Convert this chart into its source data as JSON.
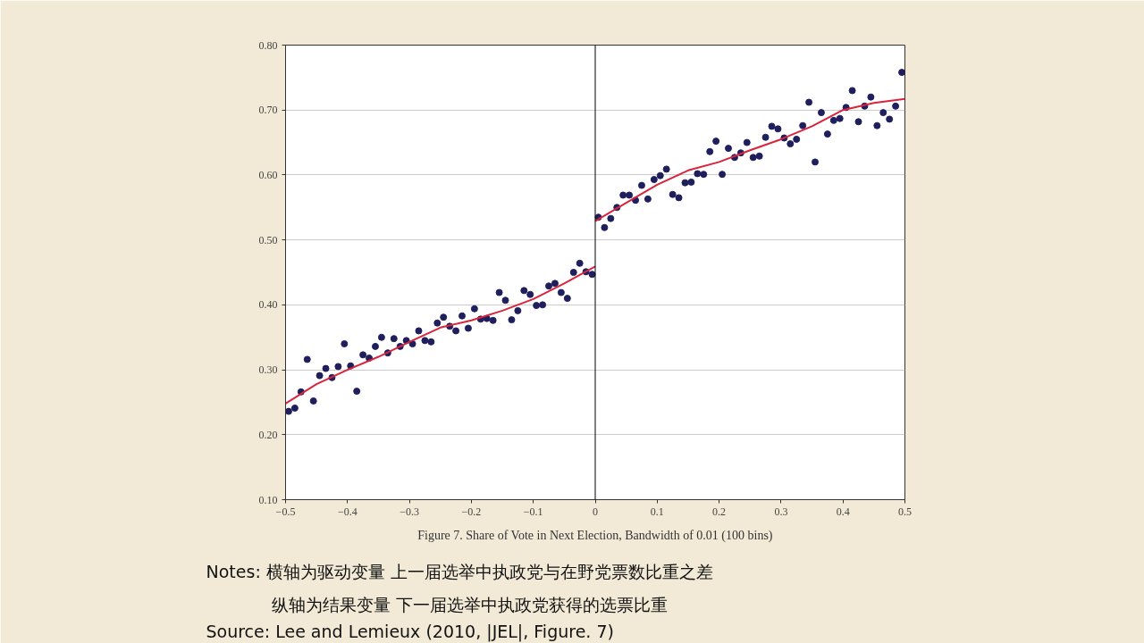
{
  "chart_data": {
    "type": "scatter",
    "title": "Figure 7. Share of Vote in Next Election, Bandwidth of 0.01 (100 bins)",
    "annotations": [
      "Notes: 横轴为驱动变量  上一届选举中执政党与在野党票数比重之差",
      "纵轴为结果变量  下一届选举中执政党获得的选票比重",
      "Source: Lee and Lemieux (2010, |JEL|, Figure. 7)"
    ],
    "xlim": [
      -0.5,
      0.5
    ],
    "ylim": [
      0.1,
      0.8
    ],
    "xticks": [
      {
        "value": -0.5,
        "label": "−0.5"
      },
      {
        "value": -0.4,
        "label": "−0.4"
      },
      {
        "value": -0.3,
        "label": "−0.3"
      },
      {
        "value": -0.2,
        "label": "−0.2"
      },
      {
        "value": -0.1,
        "label": "−0.1"
      },
      0,
      0.1,
      0.2,
      0.3,
      0.4,
      0.5
    ],
    "yticks": [
      {
        "value": 0.1,
        "label": "0.10"
      },
      {
        "value": 0.2,
        "label": "0.20"
      },
      {
        "value": 0.3,
        "label": "0.30"
      },
      {
        "value": 0.4,
        "label": "0.40"
      },
      {
        "value": 0.5,
        "label": "0.50"
      },
      {
        "value": 0.6,
        "label": "0.60"
      },
      {
        "value": 0.7,
        "label": "0.70"
      },
      {
        "value": 0.8,
        "label": "0.80"
      }
    ],
    "grid": "y",
    "ref_lines": [
      {
        "axis": "x",
        "value": 0,
        "color": "#000000"
      }
    ],
    "series": [
      {
        "marker": "circle",
        "color": "#1f1f5e",
        "x": [
          -0.495,
          -0.485,
          -0.475,
          -0.465,
          -0.455,
          -0.445,
          -0.435,
          -0.425,
          -0.415,
          -0.405,
          -0.395,
          -0.385,
          -0.375,
          -0.365,
          -0.355,
          -0.345,
          -0.335,
          -0.325,
          -0.315,
          -0.305,
          -0.295,
          -0.285,
          -0.275,
          -0.265,
          -0.255,
          -0.245,
          -0.235,
          -0.225,
          -0.215,
          -0.205,
          -0.195,
          -0.185,
          -0.175,
          -0.165,
          -0.155,
          -0.145,
          -0.135,
          -0.125,
          -0.115,
          -0.105,
          -0.095,
          -0.085,
          -0.075,
          -0.065,
          -0.055,
          -0.045,
          -0.035,
          -0.025,
          -0.015,
          -0.005,
          0.005,
          0.015,
          0.025,
          0.035,
          0.045,
          0.055,
          0.065,
          0.075,
          0.085,
          0.095,
          0.105,
          0.115,
          0.125,
          0.135,
          0.145,
          0.155,
          0.165,
          0.175,
          0.185,
          0.195,
          0.205,
          0.215,
          0.225,
          0.235,
          0.245,
          0.255,
          0.265,
          0.275,
          0.285,
          0.295,
          0.305,
          0.315,
          0.325,
          0.335,
          0.345,
          0.355,
          0.365,
          0.375,
          0.385,
          0.395,
          0.405,
          0.415,
          0.425,
          0.435,
          0.445,
          0.455,
          0.465,
          0.475,
          0.485,
          0.495
        ],
        "values": [
          0.236,
          0.241,
          0.266,
          0.316,
          0.252,
          0.291,
          0.302,
          0.288,
          0.305,
          0.34,
          0.306,
          0.267,
          0.323,
          0.318,
          0.336,
          0.35,
          0.326,
          0.348,
          0.336,
          0.345,
          0.34,
          0.36,
          0.345,
          0.343,
          0.372,
          0.381,
          0.367,
          0.36,
          0.383,
          0.364,
          0.394,
          0.378,
          0.379,
          0.376,
          0.419,
          0.407,
          0.377,
          0.391,
          0.422,
          0.416,
          0.399,
          0.4,
          0.429,
          0.433,
          0.419,
          0.41,
          0.45,
          0.464,
          0.451,
          0.447,
          0.535,
          0.519,
          0.533,
          0.55,
          0.569,
          0.569,
          0.561,
          0.584,
          0.563,
          0.593,
          0.599,
          0.609,
          0.57,
          0.565,
          0.588,
          0.589,
          0.602,
          0.601,
          0.636,
          0.652,
          0.601,
          0.641,
          0.627,
          0.634,
          0.65,
          0.627,
          0.629,
          0.658,
          0.675,
          0.671,
          0.657,
          0.648,
          0.655,
          0.676,
          0.712,
          0.62,
          0.696,
          0.663,
          0.684,
          0.687,
          0.704,
          0.73,
          0.682,
          0.706,
          0.72,
          0.676,
          0.696,
          0.686,
          0.706,
          0.758
        ]
      },
      {
        "type": "line",
        "color": "#d9243c",
        "x": [
          -0.5,
          -0.45,
          -0.4,
          -0.35,
          -0.3,
          -0.25,
          -0.2,
          -0.15,
          -0.1,
          -0.05,
          0
        ],
        "values": [
          0.248,
          0.278,
          0.3,
          0.32,
          0.343,
          0.365,
          0.376,
          0.391,
          0.409,
          0.433,
          0.459
        ]
      },
      {
        "type": "line",
        "color": "#d9243c",
        "x": [
          0,
          0.05,
          0.1,
          0.15,
          0.2,
          0.25,
          0.3,
          0.35,
          0.4,
          0.45,
          0.5
        ],
        "values": [
          0.529,
          0.557,
          0.585,
          0.607,
          0.62,
          0.638,
          0.655,
          0.675,
          0.7,
          0.711,
          0.717
        ]
      }
    ]
  }
}
